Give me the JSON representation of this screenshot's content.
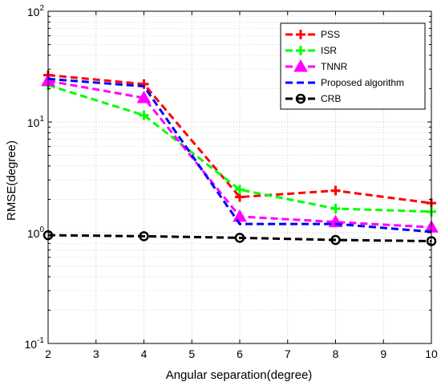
{
  "chart_data": {
    "type": "line",
    "xlabel": "Angular separation(degree)",
    "ylabel": "RMSE(degree)",
    "xlim": [
      2,
      10
    ],
    "ylim": [
      0.1,
      100
    ],
    "yscale": "log",
    "grid": true,
    "legend_position": "top-right",
    "x_ticks": [
      2,
      3,
      4,
      5,
      6,
      7,
      8,
      9,
      10
    ],
    "y_ticks": [
      {
        "value": 100,
        "base": "10",
        "exp": "2"
      },
      {
        "value": 10,
        "base": "10",
        "exp": "1"
      },
      {
        "value": 1,
        "base": "10",
        "exp": "0"
      },
      {
        "value": 0.1,
        "base": "10",
        "exp": "-1"
      }
    ],
    "x": [
      2,
      4,
      6,
      8,
      10
    ],
    "series": [
      {
        "name": "PSS",
        "color": "#ff0000",
        "marker": "plus",
        "values": [
          26.5,
          22.0,
          2.1,
          2.4,
          1.85
        ]
      },
      {
        "name": "ISR",
        "color": "#00ff00",
        "marker": "plus",
        "values": [
          21.5,
          11.5,
          2.45,
          1.65,
          1.55
        ]
      },
      {
        "name": "TNNR",
        "color": "#ff00ff",
        "marker": "triangle",
        "values": [
          23.5,
          16.5,
          1.4,
          1.25,
          1.12
        ]
      },
      {
        "name": "Proposed algorithm",
        "color": "#0000ff",
        "marker": "none",
        "values": [
          24.5,
          21.0,
          1.2,
          1.2,
          1.02
        ]
      },
      {
        "name": "CRB",
        "color": "#000000",
        "marker": "circle",
        "values": [
          0.95,
          0.93,
          0.9,
          0.86,
          0.84
        ]
      }
    ]
  }
}
